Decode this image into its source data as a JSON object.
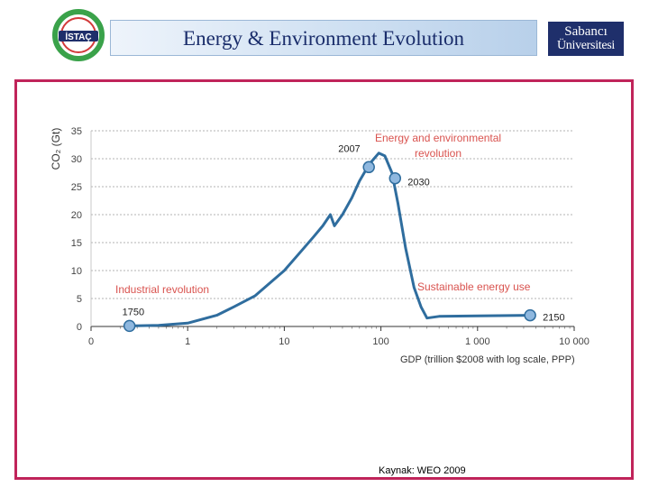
{
  "header": {
    "title": "Energy & Environment Evolution",
    "left_logo_text": "İSTAÇ",
    "right_logo_line1": "Sabancı",
    "right_logo_line2": "Üniversitesi"
  },
  "colors": {
    "title_text": "#1a2d6b",
    "frame_border": "#c0245a",
    "series_line": "#2f6d9e",
    "marker_fill": "#8fb8df",
    "annotation_red": "#d9534f",
    "right_logo_bg": "#1f2f6b",
    "left_logo_green": "#3aa24a"
  },
  "chart_data": {
    "type": "line",
    "xlabel": "GDP (trillion $2008 with log scale, PPP)",
    "ylabel": "CO₂ (Gt)",
    "x_scale": "log",
    "x_ticks": [
      "0",
      "1",
      "10",
      "100",
      "1 000",
      "10 000"
    ],
    "y_ticks": [
      "0",
      "5",
      "10",
      "15",
      "20",
      "25",
      "30",
      "35"
    ],
    "ylim": [
      0,
      35
    ],
    "grid": "horizontal dashed",
    "series": [
      {
        "points": [
          [
            0.25,
            0.1
          ],
          [
            0.5,
            0.2
          ],
          [
            1,
            0.6
          ],
          [
            2,
            2.0
          ],
          [
            3,
            3.5
          ],
          [
            5,
            5.5
          ],
          [
            10,
            10
          ],
          [
            15,
            13.5
          ],
          [
            20,
            16
          ],
          [
            25,
            18
          ],
          [
            30,
            20
          ],
          [
            33,
            18
          ],
          [
            40,
            20
          ],
          [
            50,
            23
          ],
          [
            60,
            26
          ],
          [
            70,
            28
          ],
          [
            80,
            29.5
          ],
          [
            95,
            31
          ],
          [
            110,
            30.5
          ],
          [
            130,
            27.5
          ],
          [
            150,
            22
          ],
          [
            180,
            14
          ],
          [
            220,
            7
          ],
          [
            260,
            3.5
          ],
          [
            300,
            1.5
          ],
          [
            400,
            1.8
          ],
          [
            1000,
            1.9
          ],
          [
            3500,
            2.0
          ]
        ]
      }
    ],
    "markers": [
      {
        "x": 0.25,
        "y": 0.1,
        "label": "1750"
      },
      {
        "x": 75,
        "y": 28.5,
        "label": "2007"
      },
      {
        "x": 140,
        "y": 26.5,
        "label": "2030"
      },
      {
        "x": 3500,
        "y": 2.0,
        "label": "2150"
      }
    ],
    "annotations": [
      {
        "text": "Industrial revolution",
        "x": 0.25,
        "y": 6.5
      },
      {
        "text": "Energy and environmental",
        "x": 500,
        "y": 33.5
      },
      {
        "text": "revolution",
        "x": 600,
        "y": 31.5
      },
      {
        "text": "Sustainable energy use",
        "x": 2000,
        "y": 7.0
      }
    ]
  },
  "footer": {
    "source": "Kaynak: WEO 2009"
  }
}
